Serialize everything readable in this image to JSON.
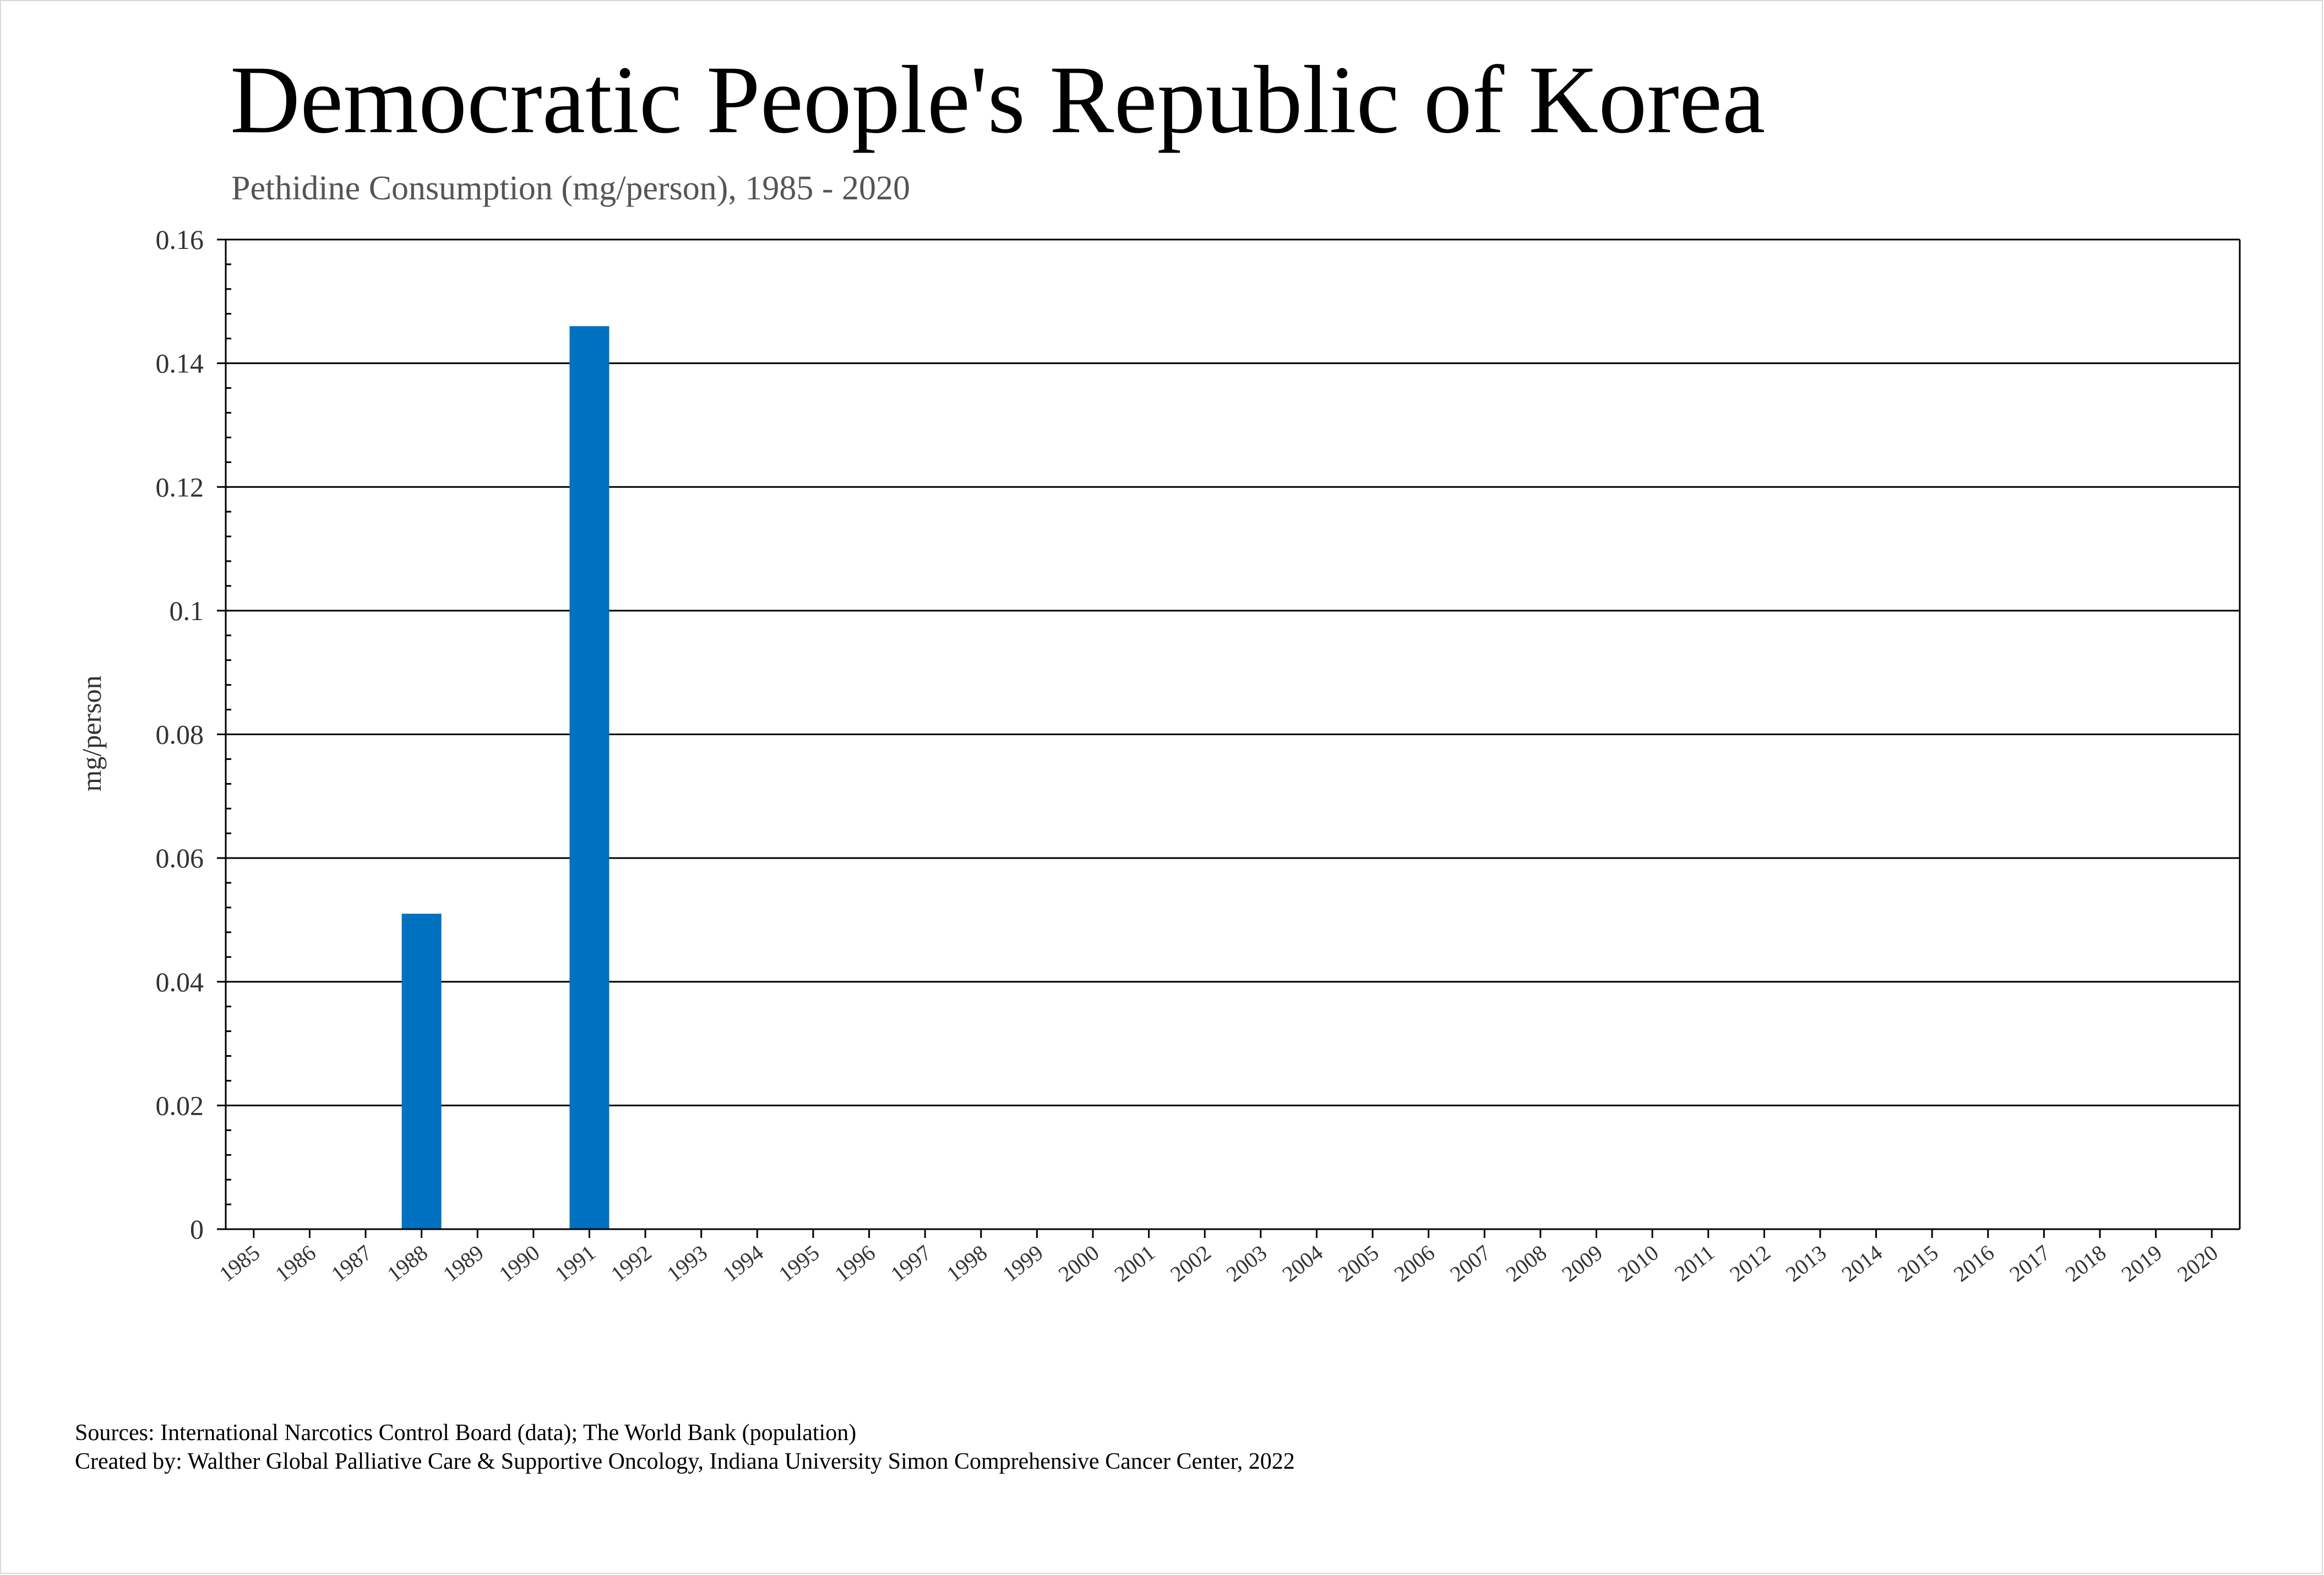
{
  "chart_data": {
    "type": "bar",
    "title": "Democratic People's Republic of Korea",
    "subtitle": "Pethidine Consumption (mg/person), 1985 - 2020",
    "xlabel": "",
    "ylabel": "mg/person",
    "ylim": [
      0,
      0.16
    ],
    "yticks": [
      "0",
      "0.02",
      "0.04",
      "0.06",
      "0.08",
      "0.1",
      "0.12",
      "0.14",
      "0.16"
    ],
    "grid": true,
    "bar_color": "#0070C0",
    "categories": [
      "1985",
      "1986",
      "1987",
      "1988",
      "1989",
      "1990",
      "1991",
      "1992",
      "1993",
      "1994",
      "1995",
      "1996",
      "1997",
      "1998",
      "1999",
      "2000",
      "2001",
      "2002",
      "2003",
      "2004",
      "2005",
      "2006",
      "2007",
      "2008",
      "2009",
      "2010",
      "2011",
      "2012",
      "2013",
      "2014",
      "2015",
      "2016",
      "2017",
      "2018",
      "2019",
      "2020"
    ],
    "values": [
      0,
      0,
      0,
      0.051,
      0,
      0,
      0.146,
      0,
      0,
      0,
      0,
      0,
      0,
      0,
      0,
      0,
      0,
      0,
      0,
      0,
      0,
      0,
      0,
      0,
      0,
      0,
      0,
      0,
      0,
      0,
      0,
      0,
      0,
      0,
      0,
      0
    ]
  },
  "footer": {
    "sources": "Sources: International Narcotics Control Board (data); The World Bank (population)",
    "created_by": "Created by: Walther Global Palliative Care & Supportive Oncology, Indiana University Simon Comprehensive Cancer Center, 2022"
  }
}
